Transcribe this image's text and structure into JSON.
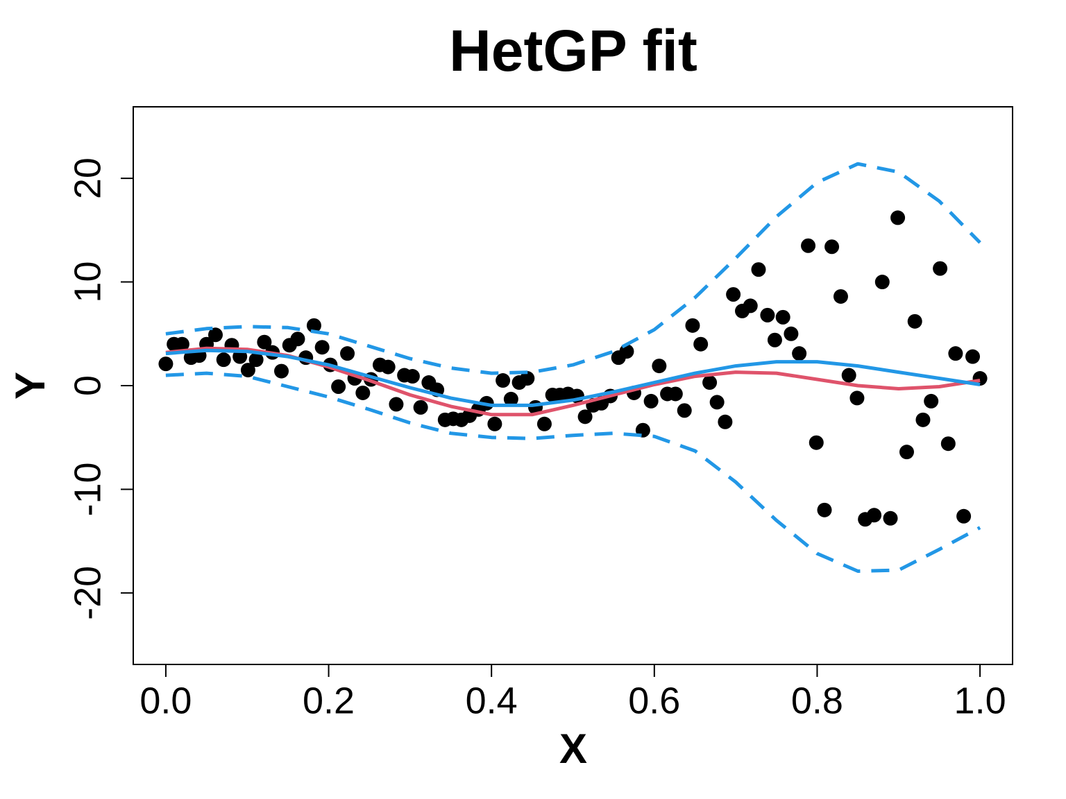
{
  "chart_data": {
    "type": "line",
    "title": "HetGP fit",
    "x_label": "X",
    "y_label": "Y",
    "xlim": [
      -0.04,
      1.04
    ],
    "ylim": [
      -26.9,
      26.9
    ],
    "xticks": [
      {
        "value": 0,
        "label": "0.0"
      },
      {
        "value": 0.2,
        "label": "0.2"
      },
      {
        "value": 0.4,
        "label": "0.4"
      },
      {
        "value": 0.6,
        "label": "0.6"
      },
      {
        "value": 0.8,
        "label": "0.8"
      },
      {
        "value": 1,
        "label": "1.0"
      }
    ],
    "yticks": [
      -20,
      -10,
      0,
      10,
      20
    ],
    "series": [
      {
        "type": "scatter",
        "color": "#000000",
        "x": [
          0.0,
          0.01,
          0.02,
          0.031,
          0.041,
          0.05,
          0.061,
          0.071,
          0.081,
          0.091,
          0.101,
          0.111,
          0.121,
          0.131,
          0.142,
          0.152,
          0.162,
          0.172,
          0.182,
          0.192,
          0.202,
          0.212,
          0.223,
          0.232,
          0.242,
          0.252,
          0.263,
          0.273,
          0.283,
          0.293,
          0.303,
          0.313,
          0.323,
          0.333,
          0.343,
          0.353,
          0.363,
          0.373,
          0.384,
          0.394,
          0.404,
          0.414,
          0.424,
          0.434,
          0.444,
          0.454,
          0.465,
          0.475,
          0.484,
          0.494,
          0.505,
          0.515,
          0.525,
          0.535,
          0.546,
          0.556,
          0.566,
          0.575,
          0.586,
          0.596,
          0.606,
          0.616,
          0.626,
          0.637,
          0.647,
          0.657,
          0.668,
          0.677,
          0.687,
          0.697,
          0.708,
          0.718,
          0.728,
          0.739,
          0.748,
          0.758,
          0.768,
          0.778,
          0.789,
          0.799,
          0.809,
          0.818,
          0.829,
          0.839,
          0.849,
          0.859,
          0.87,
          0.88,
          0.89,
          0.899,
          0.91,
          0.92,
          0.93,
          0.94,
          0.951,
          0.961,
          0.97,
          0.98,
          0.991,
          1.0
        ],
        "values": [
          2.1,
          4.0,
          4.0,
          2.7,
          2.9,
          4.0,
          4.9,
          2.5,
          3.9,
          2.8,
          1.5,
          2.5,
          4.2,
          3.2,
          1.4,
          3.9,
          4.5,
          2.7,
          5.8,
          3.7,
          2.0,
          -0.1,
          3.1,
          0.7,
          -0.7,
          0.6,
          2.0,
          1.8,
          -1.8,
          1.0,
          0.9,
          -2.1,
          0.3,
          -0.4,
          -3.3,
          -3.2,
          -3.3,
          -2.9,
          -2.3,
          -1.7,
          -3.7,
          0.5,
          -1.3,
          0.3,
          0.7,
          -2.1,
          -3.7,
          -0.9,
          -0.9,
          -0.8,
          -1.0,
          -3.0,
          -1.9,
          -1.7,
          -1.0,
          2.7,
          3.3,
          -0.7,
          -4.3,
          -1.5,
          1.9,
          -0.8,
          -0.8,
          -2.4,
          5.8,
          4.0,
          0.3,
          -1.6,
          -3.5,
          8.8,
          7.2,
          7.7,
          11.2,
          6.8,
          4.4,
          6.6,
          5.0,
          3.1,
          13.5,
          -5.5,
          -12.0,
          13.4,
          8.6,
          1.0,
          -1.2,
          -12.9,
          -12.5,
          10.0,
          -12.8,
          16.2,
          -6.4,
          6.2,
          -3.3,
          -1.5,
          11.3,
          -5.6,
          3.1,
          -12.6,
          2.8,
          0.7
        ]
      },
      {
        "type": "line",
        "color": "#df536b",
        "dashed": false,
        "x": [
          0,
          0.05,
          0.1,
          0.15,
          0.2,
          0.25,
          0.3,
          0.35,
          0.4,
          0.45,
          0.5,
          0.55,
          0.6,
          0.65,
          0.7,
          0.75,
          0.8,
          0.85,
          0.9,
          0.95,
          1
        ],
        "values": [
          3.2,
          3.6,
          3.5,
          2.9,
          1.8,
          0.5,
          -0.9,
          -2.0,
          -2.8,
          -2.8,
          -1.9,
          -0.9,
          0.1,
          0.9,
          1.3,
          1.2,
          0.6,
          0.0,
          -0.3,
          -0.1,
          0.5
        ]
      },
      {
        "type": "line",
        "color": "#2297e6",
        "dashed": false,
        "x": [
          0,
          0.05,
          0.1,
          0.15,
          0.2,
          0.25,
          0.3,
          0.35,
          0.4,
          0.45,
          0.5,
          0.55,
          0.6,
          0.65,
          0.7,
          0.75,
          0.8,
          0.85,
          0.9,
          0.95,
          1
        ],
        "values": [
          3.1,
          3.4,
          3.3,
          2.8,
          2.0,
          0.9,
          -0.2,
          -1.2,
          -1.9,
          -1.9,
          -1.4,
          -0.6,
          0.3,
          1.2,
          1.9,
          2.3,
          2.3,
          1.9,
          1.3,
          0.7,
          0.1
        ]
      },
      {
        "type": "line",
        "color": "#2297e6",
        "dashed": true,
        "x": [
          0,
          0.05,
          0.1,
          0.15,
          0.2,
          0.25,
          0.3,
          0.35,
          0.4,
          0.45,
          0.5,
          0.55,
          0.6,
          0.65,
          0.7,
          0.75,
          0.8,
          0.85,
          0.9,
          0.95,
          1
        ],
        "values": [
          5.0,
          5.5,
          5.7,
          5.6,
          5.0,
          3.8,
          2.6,
          1.7,
          1.2,
          1.3,
          2.0,
          3.3,
          5.4,
          8.5,
          12.3,
          16.3,
          19.6,
          21.4,
          20.6,
          17.8,
          13.8
        ]
      },
      {
        "type": "line",
        "color": "#2297e6",
        "dashed": true,
        "x": [
          0,
          0.05,
          0.1,
          0.15,
          0.2,
          0.25,
          0.3,
          0.35,
          0.4,
          0.45,
          0.5,
          0.55,
          0.6,
          0.65,
          0.7,
          0.75,
          0.8,
          0.85,
          0.9,
          0.95,
          1
        ],
        "values": [
          1.0,
          1.2,
          0.9,
          -0.1,
          -1.1,
          -2.3,
          -3.6,
          -4.6,
          -5.0,
          -5.1,
          -4.8,
          -4.6,
          -4.9,
          -6.3,
          -9.3,
          -13.0,
          -16.2,
          -17.9,
          -17.8,
          -15.8,
          -13.7
        ]
      }
    ]
  }
}
